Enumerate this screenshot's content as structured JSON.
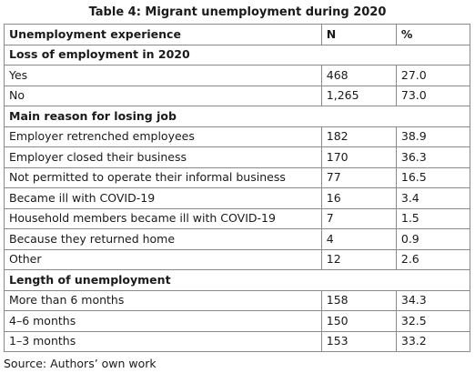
{
  "caption": "Table 4: Migrant unemployment during 2020",
  "header": {
    "col1": "Unemployment experience",
    "col2": "N",
    "col3": "%"
  },
  "sections": [
    {
      "title": "Loss of employment in 2020",
      "rows": [
        {
          "label": "Yes",
          "n": "468",
          "pct": "27.0"
        },
        {
          "label": "No",
          "n": "1,265",
          "pct": "73.0"
        }
      ]
    },
    {
      "title": "Main reason for losing job",
      "rows": [
        {
          "label": "Employer retrenched employees",
          "n": "182",
          "pct": "38.9"
        },
        {
          "label": "Employer closed their business",
          "n": "170",
          "pct": "36.3"
        },
        {
          "label": "Not permitted to operate their informal business",
          "n": "77",
          "pct": "16.5"
        },
        {
          "label": "Became ill with COVID-19",
          "n": "16",
          "pct": "3.4"
        },
        {
          "label": "Household members became ill with COVID-19",
          "n": "7",
          "pct": "1.5"
        },
        {
          "label": "Because they returned home",
          "n": "4",
          "pct": "0.9"
        },
        {
          "label": "Other",
          "n": "12",
          "pct": "2.6"
        }
      ]
    },
    {
      "title": "Length of unemployment",
      "rows": [
        {
          "label": "More than 6 months",
          "n": "158",
          "pct": "34.3"
        },
        {
          "label": "4–6 months",
          "n": "150",
          "pct": "32.5"
        },
        {
          "label": "1–3 months",
          "n": "153",
          "pct": "33.2"
        }
      ]
    }
  ],
  "source": "Source: Authors’ own work"
}
